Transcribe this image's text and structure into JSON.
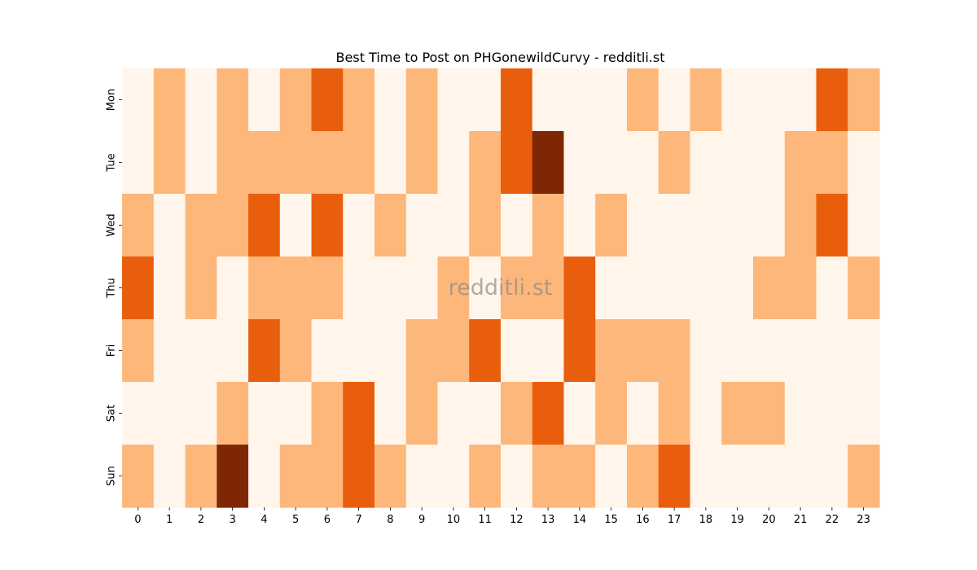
{
  "chart_data": {
    "type": "heatmap",
    "title": "Best Time to Post on PHGonewildCurvy - redditli.st",
    "watermark": "redditli.st",
    "xlabel": "",
    "ylabel": "",
    "x_categories": [
      "0",
      "1",
      "2",
      "3",
      "4",
      "5",
      "6",
      "7",
      "8",
      "9",
      "10",
      "11",
      "12",
      "13",
      "14",
      "15",
      "16",
      "17",
      "18",
      "19",
      "20",
      "21",
      "22",
      "23"
    ],
    "y_categories": [
      "Mon",
      "Tue",
      "Wed",
      "Thu",
      "Fri",
      "Sat",
      "Sun"
    ],
    "values": [
      [
        0,
        1,
        0,
        1,
        0,
        1,
        2,
        1,
        0,
        1,
        0,
        0,
        2,
        0,
        0,
        0,
        1,
        0,
        1,
        0,
        0,
        0,
        2,
        1
      ],
      [
        0,
        1,
        0,
        1,
        1,
        1,
        1,
        1,
        0,
        1,
        0,
        1,
        2,
        3,
        0,
        0,
        0,
        1,
        0,
        0,
        0,
        1,
        1,
        0
      ],
      [
        1,
        0,
        1,
        1,
        2,
        0,
        2,
        0,
        1,
        0,
        0,
        1,
        0,
        1,
        0,
        1,
        0,
        0,
        0,
        0,
        0,
        1,
        2,
        0
      ],
      [
        2,
        0,
        1,
        0,
        1,
        1,
        1,
        0,
        0,
        0,
        1,
        0,
        1,
        1,
        2,
        0,
        0,
        0,
        0,
        0,
        1,
        1,
        0,
        1
      ],
      [
        1,
        0,
        0,
        0,
        2,
        1,
        0,
        0,
        0,
        1,
        1,
        2,
        0,
        0,
        2,
        1,
        1,
        1,
        0,
        0,
        0,
        0,
        0,
        0
      ],
      [
        0,
        0,
        0,
        1,
        0,
        0,
        1,
        2,
        0,
        1,
        0,
        0,
        1,
        2,
        0,
        1,
        0,
        1,
        0,
        1,
        1,
        0,
        0,
        0
      ],
      [
        1,
        0,
        1,
        3,
        0,
        1,
        1,
        2,
        1,
        0,
        0,
        1,
        0,
        1,
        1,
        0,
        1,
        2,
        0,
        0,
        0,
        0,
        0,
        1
      ]
    ],
    "colors": [
      "#fff5eb",
      "#fdb77a",
      "#e95e0d",
      "#7f2704"
    ],
    "colorbar": false,
    "grid": false
  }
}
